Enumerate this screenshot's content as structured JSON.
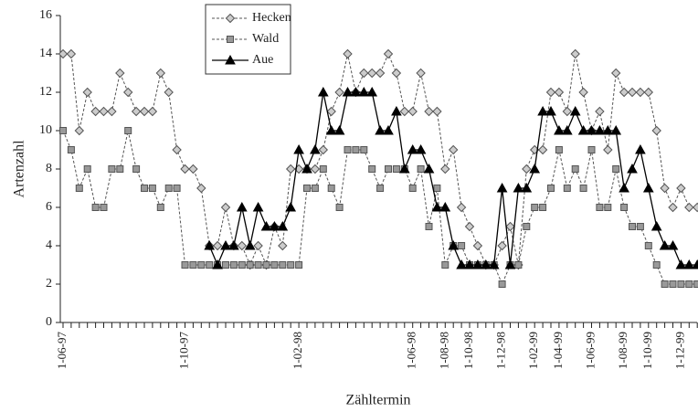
{
  "chart_data": {
    "type": "line",
    "x_label": "Zähltermin",
    "y_label": "Artenzahl",
    "categories": [
      "1-06-97",
      null,
      null,
      null,
      null,
      null,
      null,
      null,
      null,
      null,
      null,
      null,
      null,
      null,
      null,
      "1-10-97",
      null,
      null,
      null,
      null,
      null,
      null,
      null,
      null,
      null,
      null,
      null,
      null,
      null,
      "1-02-98",
      null,
      null,
      null,
      null,
      null,
      null,
      null,
      null,
      null,
      null,
      null,
      null,
      null,
      "1-06-98",
      null,
      null,
      null,
      "1-08-98",
      null,
      null,
      "1-10-98",
      null,
      null,
      null,
      "1-12-98",
      null,
      null,
      null,
      "1-02-99",
      null,
      null,
      "1-04-99",
      null,
      null,
      null,
      "1-06-99",
      null,
      null,
      null,
      "1-08-99",
      null,
      null,
      "1-10-99",
      null,
      null,
      null,
      "1-12-99",
      null,
      null
    ],
    "series": [
      {
        "name": "Hecken",
        "color": "#cccccc",
        "marker": "diamond",
        "line_style": "dashed",
        "values": [
          14,
          14,
          10,
          12,
          11,
          11,
          11,
          13,
          12,
          11,
          11,
          11,
          13,
          12,
          9,
          8,
          8,
          7,
          4,
          4,
          6,
          4,
          4,
          3,
          4,
          3,
          5,
          4,
          8,
          8,
          8,
          8,
          9,
          11,
          12,
          14,
          12,
          13,
          13,
          13,
          14,
          13,
          11,
          11,
          13,
          11,
          11,
          8,
          9,
          6,
          5,
          4,
          3,
          3,
          4,
          5,
          3,
          8,
          9,
          9,
          12,
          12,
          11,
          14,
          12,
          10,
          11,
          9,
          13,
          12,
          12,
          12,
          12,
          10,
          7,
          6,
          7,
          6,
          6
        ]
      },
      {
        "name": "Wald",
        "color": "#999999",
        "marker": "square",
        "line_style": "dashed",
        "values": [
          10,
          9,
          7,
          8,
          6,
          6,
          8,
          8,
          10,
          8,
          7,
          7,
          6,
          7,
          7,
          3,
          3,
          3,
          3,
          3,
          3,
          3,
          3,
          3,
          3,
          3,
          3,
          3,
          3,
          3,
          7,
          7,
          8,
          7,
          6,
          9,
          9,
          9,
          8,
          7,
          8,
          8,
          8,
          7,
          8,
          5,
          7,
          3,
          4,
          4,
          3,
          3,
          3,
          3,
          2,
          3,
          3,
          5,
          6,
          6,
          7,
          9,
          7,
          8,
          7,
          9,
          6,
          6,
          8,
          6,
          5,
          5,
          4,
          3,
          2,
          2,
          2,
          2,
          2
        ]
      },
      {
        "name": "Aue",
        "color": "#000000",
        "marker": "triangle",
        "line_style": "solid",
        "values": [
          null,
          null,
          null,
          null,
          null,
          null,
          null,
          null,
          null,
          null,
          null,
          null,
          null,
          null,
          null,
          null,
          null,
          null,
          4,
          3,
          4,
          4,
          6,
          4,
          6,
          5,
          5,
          5,
          6,
          9,
          8,
          9,
          12,
          10,
          10,
          12,
          12,
          12,
          12,
          10,
          10,
          11,
          8,
          9,
          9,
          8,
          6,
          6,
          4,
          3,
          3,
          3,
          3,
          3,
          7,
          3,
          7,
          7,
          8,
          11,
          11,
          10,
          10,
          11,
          10,
          10,
          10,
          10,
          10,
          7,
          8,
          9,
          7,
          5,
          4,
          4,
          3,
          3,
          3
        ]
      }
    ],
    "ylim": [
      0,
      16
    ],
    "yticks": [
      0,
      2,
      4,
      6,
      8,
      10,
      12,
      14,
      16
    ]
  }
}
